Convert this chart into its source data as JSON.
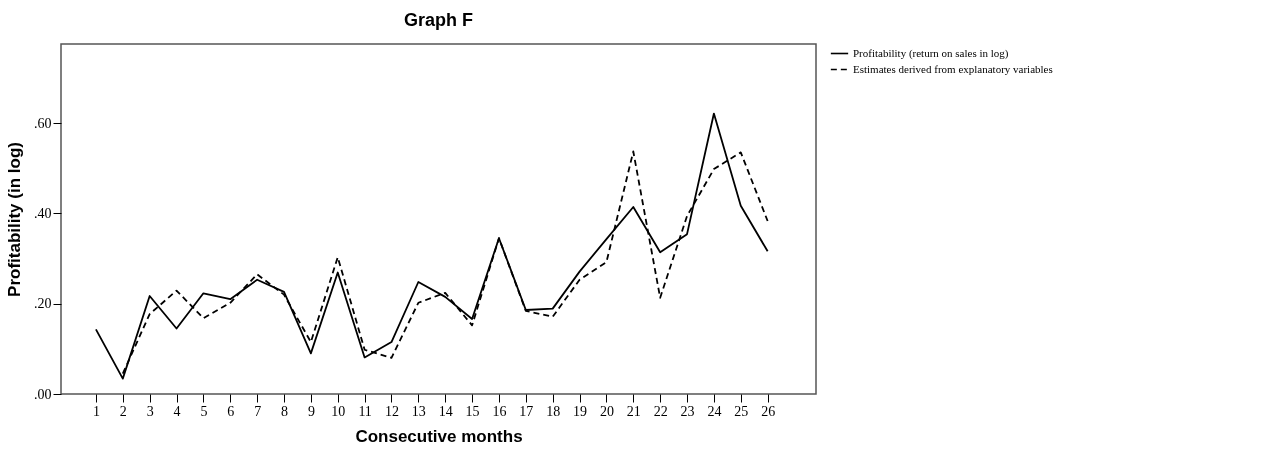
{
  "chart_data": {
    "type": "line",
    "title": "Graph F",
    "xlabel": "Consecutive months",
    "ylabel": "Profitability (in log)",
    "x": [
      1,
      2,
      3,
      4,
      5,
      6,
      7,
      8,
      9,
      10,
      11,
      12,
      13,
      14,
      15,
      16,
      17,
      18,
      19,
      20,
      21,
      22,
      23,
      24,
      25,
      26
    ],
    "series": [
      {
        "name": "Profitability (return on sales in log)",
        "color": "#000000",
        "line_style": "solid",
        "values": [
          0.143,
          0.034,
          0.217,
          0.145,
          0.223,
          0.21,
          0.253,
          0.226,
          0.09,
          0.269,
          0.081,
          0.115,
          0.248,
          0.215,
          0.166,
          0.345,
          0.186,
          0.189,
          0.271,
          0.343,
          0.414,
          0.314,
          0.354,
          0.621,
          0.417,
          0.316
        ]
      },
      {
        "name": "Estimates derived from explanatory variables",
        "color": "#000000",
        "line_style": "dashed",
        "values": [
          null,
          0.045,
          0.177,
          0.229,
          0.168,
          0.202,
          0.265,
          0.22,
          0.115,
          0.303,
          0.098,
          0.08,
          0.202,
          0.224,
          0.152,
          0.345,
          0.184,
          0.171,
          0.253,
          0.292,
          0.537,
          0.213,
          0.394,
          0.498,
          0.535,
          0.383
        ]
      }
    ],
    "xlim": [
      -0.3,
      27.8
    ],
    "xticks": [
      1,
      2,
      3,
      4,
      5,
      6,
      7,
      8,
      9,
      10,
      11,
      12,
      13,
      14,
      15,
      16,
      17,
      18,
      19,
      20,
      21,
      22,
      23,
      24,
      25,
      26
    ],
    "ylim": [
      0,
      0.775
    ],
    "yticks": [
      {
        "value": 0,
        "label": ".00"
      },
      {
        "value": 0.2,
        "label": ".20"
      },
      {
        "value": 0.4,
        "label": ".40"
      },
      {
        "value": 0.6,
        "label": ".60"
      }
    ],
    "grid": false,
    "legend": "top right",
    "marker": "none"
  }
}
